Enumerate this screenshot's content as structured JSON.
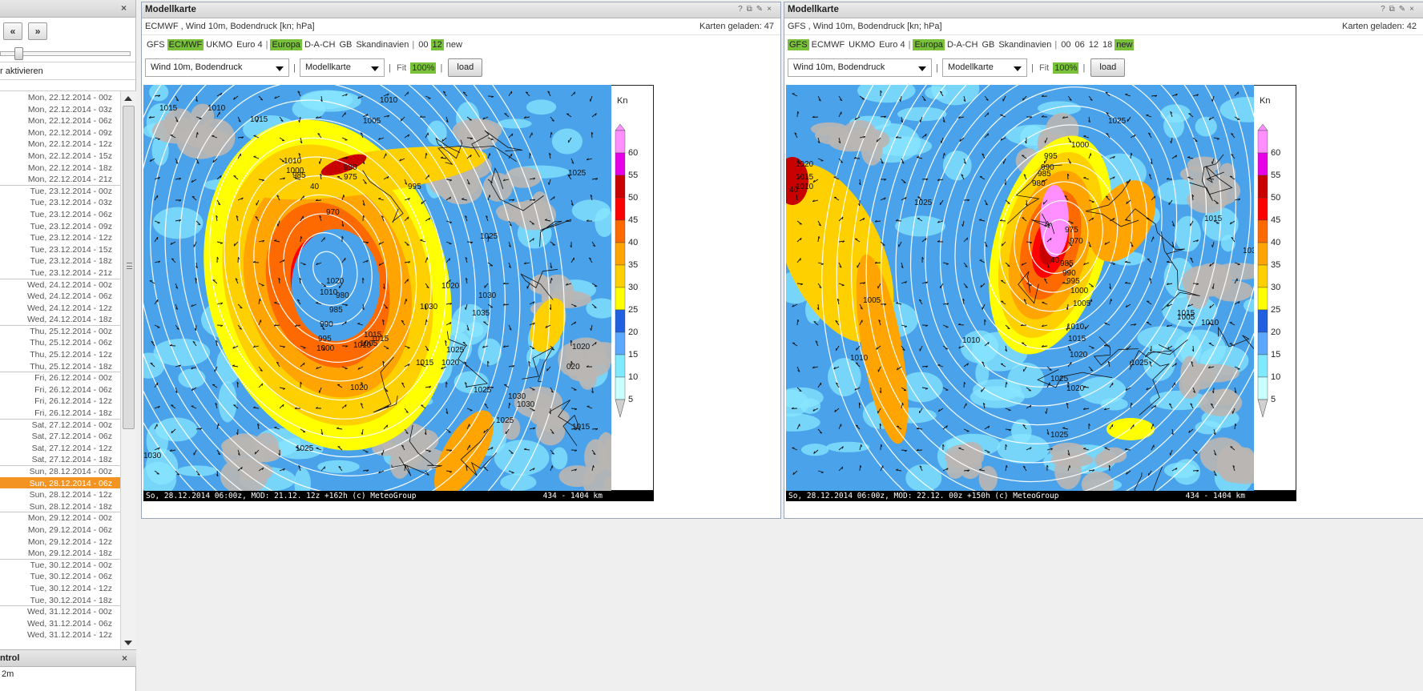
{
  "sidebar": {
    "nav_prev": "«",
    "nav_next": "»",
    "activate_text": "r aktivieren",
    "times": [
      "Mon, 22.12.2014 - 00z",
      "Mon, 22.12.2014 - 03z",
      "Mon, 22.12.2014 - 06z",
      "Mon, 22.12.2014 - 09z",
      "Mon, 22.12.2014 - 12z",
      "Mon, 22.12.2014 - 15z",
      "Mon, 22.12.2014 - 18z",
      "Mon, 22.12.2014 - 21z",
      "Tue, 23.12.2014 - 00z",
      "Tue, 23.12.2014 - 03z",
      "Tue, 23.12.2014 - 06z",
      "Tue, 23.12.2014 - 09z",
      "Tue, 23.12.2014 - 12z",
      "Tue, 23.12.2014 - 15z",
      "Tue, 23.12.2014 - 18z",
      "Tue, 23.12.2014 - 21z",
      "Wed, 24.12.2014 - 00z",
      "Wed, 24.12.2014 - 06z",
      "Wed, 24.12.2014 - 12z",
      "Wed, 24.12.2014 - 18z",
      "Thu, 25.12.2014 - 00z",
      "Thu, 25.12.2014 - 06z",
      "Thu, 25.12.2014 - 12z",
      "Thu, 25.12.2014 - 18z",
      "Fri, 26.12.2014 - 00z",
      "Fri, 26.12.2014 - 06z",
      "Fri, 26.12.2014 - 12z",
      "Fri, 26.12.2014 - 18z",
      "Sat, 27.12.2014 - 00z",
      "Sat, 27.12.2014 - 06z",
      "Sat, 27.12.2014 - 12z",
      "Sat, 27.12.2014 - 18z",
      "Sun, 28.12.2014 - 00z",
      "Sun, 28.12.2014 - 06z",
      "Sun, 28.12.2014 - 12z",
      "Sun, 28.12.2014 - 18z",
      "Mon, 29.12.2014 - 00z",
      "Mon, 29.12.2014 - 06z",
      "Mon, 29.12.2014 - 12z",
      "Mon, 29.12.2014 - 18z",
      "Tue, 30.12.2014 - 00z",
      "Tue, 30.12.2014 - 06z",
      "Tue, 30.12.2014 - 12z",
      "Tue, 30.12.2014 - 18z",
      "Wed, 31.12.2014 - 00z",
      "Wed, 31.12.2014 - 06z",
      "Wed, 31.12.2014 - 12z"
    ],
    "selected_time": "Sun, 28.12.2014 - 06z",
    "control_title": "ntrol",
    "control_value": "2m"
  },
  "panels": [
    {
      "title": "Modellkarte",
      "subtitle": "ECMWF , Wind 10m, Bodendruck [kn; hPa]",
      "loaded": "Karten geladen: 47",
      "models": [
        {
          "label": "GFS",
          "active": false
        },
        {
          "label": "ECMWF",
          "active": true
        },
        {
          "label": "UKMO",
          "active": false
        },
        {
          "label": "Euro 4",
          "active": false
        }
      ],
      "regions": [
        {
          "label": "Europa",
          "active": true
        },
        {
          "label": "D-A-CH",
          "active": false
        },
        {
          "label": "GB",
          "active": false
        },
        {
          "label": "Skandinavien",
          "active": false
        }
      ],
      "runs": [
        {
          "label": "00",
          "active": false
        },
        {
          "label": "12",
          "active": true
        },
        {
          "label": "new",
          "active": false
        }
      ],
      "parameter": "Wind 10m, Bodendruck",
      "map_type": "Modellkarte",
      "fit_label": "Fit",
      "zoom": "100%",
      "load_label": "load",
      "footer": "So, 28.12.2014 06:00z, MOD: 21.12. 12z +162h (c) MeteoGroup",
      "scale": "434 - 1404 km",
      "isobars": [
        "1010",
        "1015",
        "1010",
        "1015",
        "1005",
        "1010",
        "1000",
        "985",
        "980",
        "975",
        "970",
        "40",
        "995",
        "1015",
        "1015",
        "1020",
        "1010",
        "980",
        "985",
        "990",
        "995",
        "1000",
        "1005",
        "1010",
        "1015",
        "1020",
        "1025",
        "1030",
        "1035",
        "1030",
        "1025",
        "1030",
        "1030",
        "1025",
        "1020",
        "1015",
        "1030",
        "1025",
        "1020",
        "1020",
        "1025",
        "020",
        "1025"
      ]
    },
    {
      "title": "Modellkarte",
      "subtitle": "GFS , Wind 10m, Bodendruck [kn; hPa]",
      "loaded": "Karten geladen: 42",
      "models": [
        {
          "label": "GFS",
          "active": true
        },
        {
          "label": "ECMWF",
          "active": false
        },
        {
          "label": "UKMO",
          "active": false
        },
        {
          "label": "Euro 4",
          "active": false
        }
      ],
      "regions": [
        {
          "label": "Europa",
          "active": true
        },
        {
          "label": "D-A-CH",
          "active": false
        },
        {
          "label": "GB",
          "active": false
        },
        {
          "label": "Skandinavien",
          "active": false
        }
      ],
      "runs": [
        {
          "label": "00",
          "active": false
        },
        {
          "label": "06",
          "active": false
        },
        {
          "label": "12",
          "active": false
        },
        {
          "label": "18",
          "active": false
        },
        {
          "label": "new",
          "active": true
        }
      ],
      "parameter": "Wind 10m, Bodendruck",
      "map_type": "Modellkarte",
      "fit_label": "Fit",
      "zoom": "100%",
      "load_label": "load",
      "footer": "So, 28.12.2014 06:00z, MOD: 22.12. 00z +150h (c) MeteoGroup",
      "scale": "434 - 1404 km",
      "isobars": [
        "1025",
        "1020",
        "1015",
        "1010",
        "40",
        "1025",
        "1005",
        "1010",
        "1000",
        "995",
        "990",
        "985",
        "980",
        "975",
        "970",
        "40",
        "985",
        "990",
        "995",
        "1000",
        "1005",
        "1010",
        "1015",
        "1020",
        "1025",
        "1020",
        "1015",
        "1010",
        "1015",
        "1025",
        "1005",
        "1010",
        "1025",
        "103"
      ]
    }
  ],
  "legend": {
    "unit": "Kn",
    "labels": [
      "60",
      "55",
      "50",
      "45",
      "40",
      "35",
      "30",
      "25",
      "20",
      "15",
      "10",
      "5"
    ],
    "colors": [
      "#ff8fff",
      "#e600e6",
      "#c80000",
      "#ff0000",
      "#ff6a00",
      "#ffa400",
      "#ffd000",
      "#ffff00",
      "#1f5fe0",
      "#5aa8ff",
      "#7fe9ff",
      "#c8ffff"
    ]
  }
}
